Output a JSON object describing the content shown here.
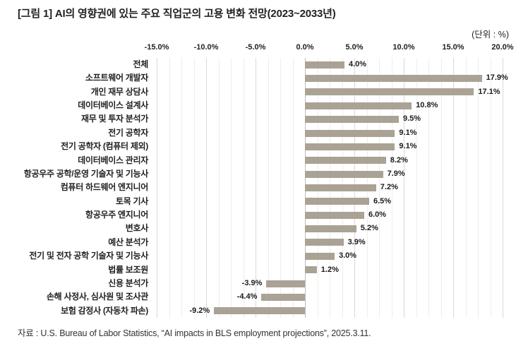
{
  "figure": {
    "title": "[그림 1] AI의 영향권에 있는 주요 직업군의 고용 변화 전망(2023~2033년)",
    "unit_label": "(단위 : %)",
    "source": "자료 : U.S. Bureau of Labor Statistics, “AI impacts in BLS employment projections”, 2025.3.11."
  },
  "chart_data": {
    "type": "bar",
    "orientation": "horizontal",
    "title": "AI의 영향권에 있는 주요 직업군의 고용 변화 전망(2023~2033년)",
    "unit": "%",
    "categories": [
      "전체",
      "소프트웨어 개발자",
      "개인 재무 상담사",
      "데이터베이스 설계사",
      "재무 및 투자 분석가",
      "전기 공학자",
      "전기 공학자 (컴퓨터 제외)",
      "데이터베이스 관리자",
      "항공우주 공학/운영 기술자 및 기능사",
      "컴퓨터 하드웨어 엔지니어",
      "토목 기사",
      "항공우주 엔지니어",
      "변호사",
      "예산 분석가",
      "전기 및 전자 공학 기술자 및 기능사",
      "법률 보조원",
      "신용 분석가",
      "손해 사정사, 심사원 및 조사관",
      "보험 감정사 (자동차 파손)"
    ],
    "values": [
      4.0,
      17.9,
      17.1,
      10.8,
      9.5,
      9.1,
      9.1,
      8.2,
      7.9,
      7.2,
      6.5,
      6.0,
      5.2,
      3.9,
      3.0,
      1.2,
      -3.9,
      -4.4,
      -9.2
    ],
    "value_labels": [
      "4.0%",
      "17.9%",
      "17.1%",
      "10.8%",
      "9.5%",
      "9.1%",
      "9.1%",
      "8.2%",
      "7.9%",
      "7.2%",
      "6.5%",
      "6.0%",
      "5.2%",
      "3.9%",
      "3.0%",
      "1.2%",
      "-3.9%",
      "-4.4%",
      "-9.2%"
    ],
    "xlim": [
      -15,
      20
    ],
    "x_tick_values": [
      -15,
      -10,
      -5,
      0,
      5,
      10,
      15,
      20
    ],
    "x_tick_labels": [
      "-15.0%",
      "-10.0%",
      "-5.0%",
      "0.0%",
      "5.0%",
      "10.0%",
      "15.0%",
      "20.0%"
    ],
    "minor_gridline_step": 1.25,
    "grid": true,
    "legend": false,
    "xlabel": "",
    "ylabel": "",
    "colors": {
      "bar": "#aaa294",
      "grid_minor": "#ededed",
      "grid_major": "#d9d9d9",
      "zero_axis": "#bdbdbd",
      "text": "#222222"
    }
  }
}
